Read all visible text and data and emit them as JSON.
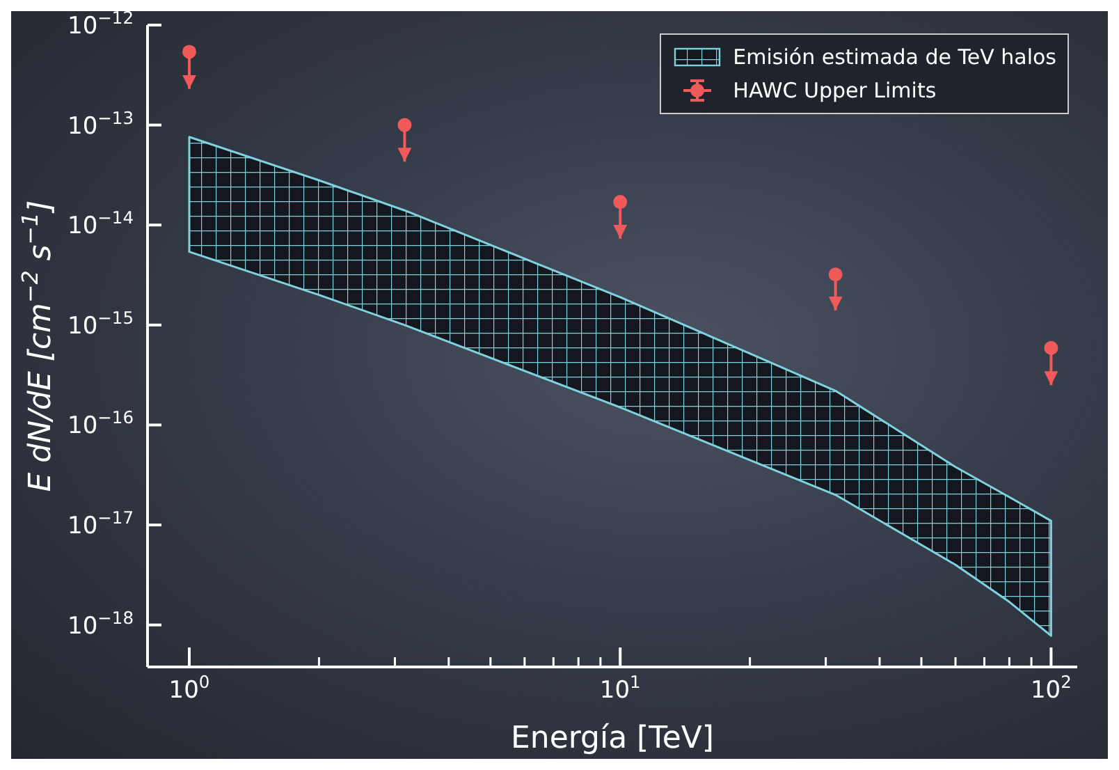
{
  "chart_data": {
    "type": "scatter",
    "xlabel": "Energía [TeV]",
    "ylabel": "E dN/dE [cm$^{−2}$ s$^{−1}$]",
    "log": "xy",
    "legend": "top right",
    "xlim": [
      0.8,
      115
    ],
    "ylim": [
      3.8e-19,
      1e-12
    ],
    "xticks": [
      {
        "value": 1,
        "label": "10$^{0}$"
      },
      {
        "value": 2,
        "label": null
      },
      {
        "value": 3,
        "label": null
      },
      {
        "value": 4,
        "label": null
      },
      {
        "value": 5,
        "label": null
      },
      {
        "value": 6,
        "label": null
      },
      {
        "value": 7,
        "label": null
      },
      {
        "value": 8,
        "label": null
      },
      {
        "value": 9,
        "label": null
      },
      {
        "value": 10,
        "label": "10$^{1}$"
      },
      {
        "value": 20,
        "label": null
      },
      {
        "value": 30,
        "label": null
      },
      {
        "value": 40,
        "label": null
      },
      {
        "value": 50,
        "label": null
      },
      {
        "value": 60,
        "label": null
      },
      {
        "value": 70,
        "label": null
      },
      {
        "value": 80,
        "label": null
      },
      {
        "value": 90,
        "label": null
      },
      {
        "value": 100,
        "label": "10$^{2}$"
      }
    ],
    "yticks": [
      {
        "value": 1e-18,
        "label": "10$^{−18}$"
      },
      {
        "value": 1e-17,
        "label": "10$^{−17}$"
      },
      {
        "value": 1e-16,
        "label": "10$^{−16}$"
      },
      {
        "value": 1e-15,
        "label": "10$^{−15}$"
      },
      {
        "value": 1e-14,
        "label": "10$^{−14}$"
      },
      {
        "value": 1e-13,
        "label": "10$^{−13}$"
      },
      {
        "value": 1e-12,
        "label": "10$^{−12}$"
      }
    ],
    "series": [
      {
        "type": "area",
        "name": "Emisión estimada de TeV halos",
        "color": "#7fd3e0",
        "x": [
          1,
          2,
          3.16,
          10,
          31.6,
          60,
          80,
          100
        ],
        "values": [
          null,
          null,
          null,
          null,
          null,
          null,
          null,
          null
        ],
        "lower": [
          5.4e-15,
          2e-15,
          1e-15,
          1.5e-16,
          2e-17,
          4e-18,
          1.7e-18,
          7.8e-19
        ],
        "upper": [
          7.6e-14,
          2.8e-14,
          1.4e-14,
          1.9e-15,
          2.2e-16,
          3.8e-17,
          1.9e-17,
          1.1e-17
        ]
      },
      {
        "name": "HAWC Upper Limits",
        "color": "#f05a5a",
        "marker": "circle",
        "x": [
          1,
          3.16,
          10,
          31.6,
          100
        ],
        "values": [
          5.4e-13,
          1e-13,
          1.7e-14,
          3.2e-15,
          5.9e-16
        ],
        "errors": [
          [
            2.3e-13,
            5.4e-13
          ],
          [
            4.3e-14,
            1e-13
          ],
          [
            7.3e-15,
            1.7e-14
          ],
          [
            1.4e-15,
            3.2e-15
          ],
          [
            2.5e-16,
            5.9e-16
          ]
        ]
      }
    ]
  }
}
